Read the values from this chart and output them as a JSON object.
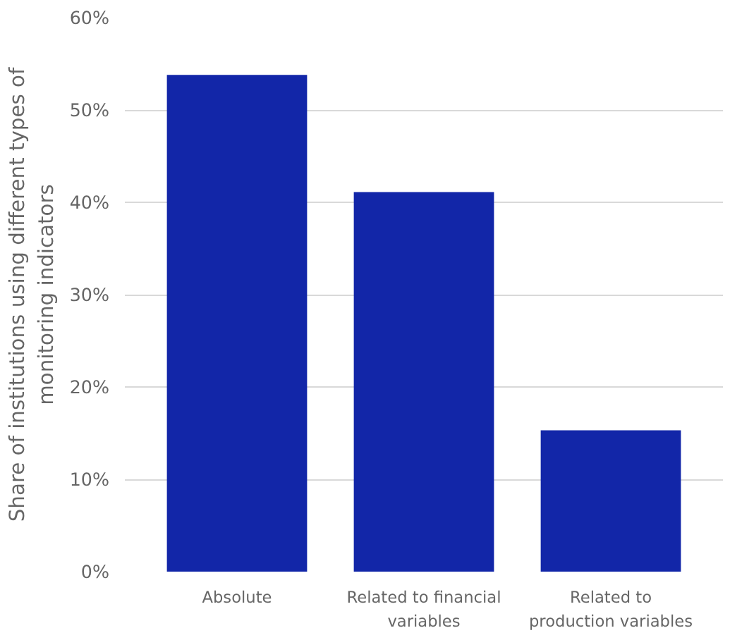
{
  "chart_data": {
    "type": "bar",
    "ylabel": "Share of institutions using different types of monitoring indicators",
    "categories": [
      "Absolute",
      "Related to financial variables",
      "Related to production variables"
    ],
    "values": [
      53.8,
      41.1,
      15.3
    ],
    "color": "#1226a8",
    "ylim": [
      0,
      60
    ],
    "yticks": [
      {
        "value": 0,
        "label": "0%"
      },
      {
        "value": 10,
        "label": "10%"
      },
      {
        "value": 20,
        "label": "20%"
      },
      {
        "value": 30,
        "label": "30%"
      },
      {
        "value": 40,
        "label": "40%"
      },
      {
        "value": 50,
        "label": "50%"
      },
      {
        "value": 60,
        "label": "60%"
      }
    ],
    "grid": "y"
  }
}
